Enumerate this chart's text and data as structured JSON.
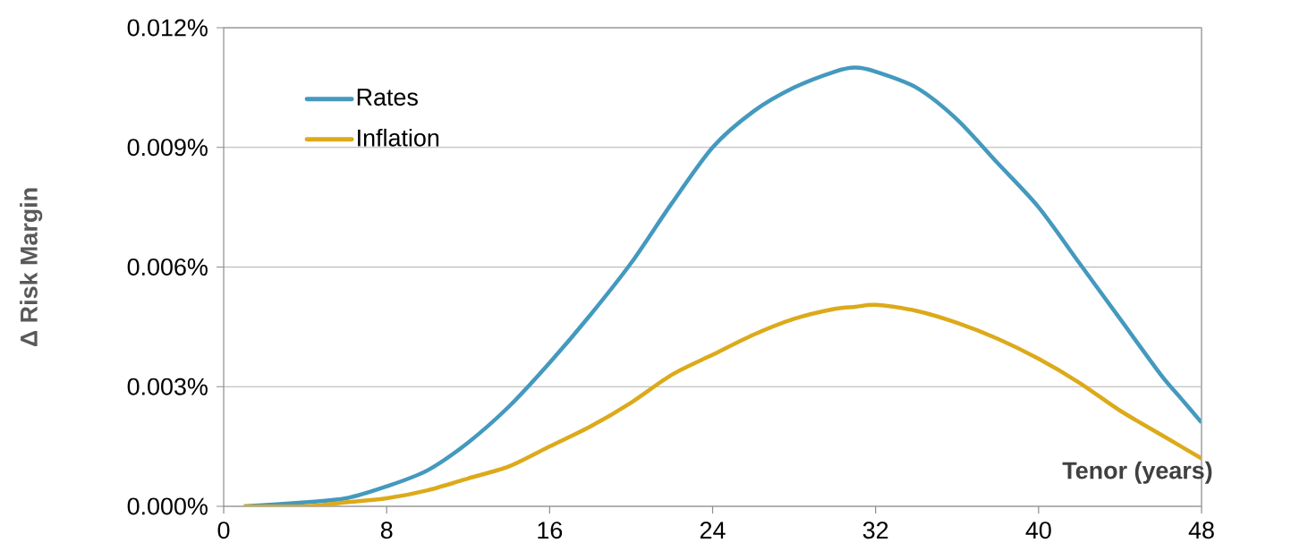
{
  "chart_data": {
    "type": "line",
    "xlabel": "Tenor (years)",
    "ylabel": "Δ Risk Margin",
    "x": [
      1,
      4,
      6,
      8,
      10,
      12,
      14,
      16,
      18,
      20,
      22,
      24,
      26,
      28,
      30,
      31,
      32,
      34,
      36,
      38,
      40,
      42,
      44,
      46,
      47,
      48
    ],
    "series": [
      {
        "name": "Rates",
        "color": "#4499be",
        "values": [
          0,
          0.0001,
          0.0002,
          0.0005,
          0.0009,
          0.0016,
          0.0025,
          0.0036,
          0.0048,
          0.0061,
          0.0076,
          0.009,
          0.0099,
          0.0105,
          0.0109,
          0.011,
          0.0109,
          0.0105,
          0.0097,
          0.0086,
          0.0075,
          0.0061,
          0.0047,
          0.0033,
          0.0027,
          0.0021
        ]
      },
      {
        "name": "Inflation",
        "color": "#dcaa1a",
        "values": [
          0,
          0,
          0.0001,
          0.0002,
          0.0004,
          0.0007,
          0.001,
          0.0015,
          0.002,
          0.0026,
          0.0033,
          0.0038,
          0.0043,
          0.0047,
          0.00495,
          0.005,
          0.00505,
          0.0049,
          0.0046,
          0.0042,
          0.0037,
          0.0031,
          0.0024,
          0.0018,
          0.0015,
          0.0012
        ]
      }
    ],
    "xlim": [
      0,
      48
    ],
    "xticks": [
      0,
      8,
      16,
      24,
      32,
      40,
      48
    ],
    "ylim": [
      0,
      0.012
    ],
    "yticks": [
      {
        "value": 0,
        "label": "0.000%"
      },
      {
        "value": 0.003,
        "label": "0.003%"
      },
      {
        "value": 0.006,
        "label": "0.006%"
      },
      {
        "value": 0.009,
        "label": "0.009%"
      },
      {
        "value": 0.012,
        "label": "0.012%"
      }
    ],
    "grid": "y",
    "legend": "top left",
    "marker": "none",
    "line_style": "solid"
  }
}
